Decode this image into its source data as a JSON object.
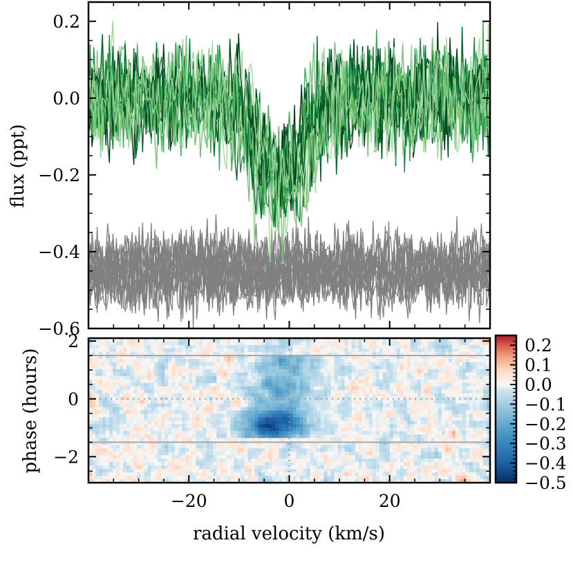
{
  "chart_data": [
    {
      "type": "line",
      "panel": "top",
      "title": "",
      "xlabel": "",
      "ylabel": "flux (ppt)",
      "xlim": [
        -40,
        40
      ],
      "ylim": [
        -0.6,
        0.25
      ],
      "yticks": [
        -0.6,
        -0.4,
        -0.2,
        0.0,
        0.2
      ],
      "ytick_labels": [
        "−0.6",
        "−0.4",
        "−0.2",
        "0.0",
        "0.2"
      ],
      "xticks": [
        -20,
        0,
        20
      ],
      "colors": {
        "in_transit": [
          "#a1d99b",
          "#74c476",
          "#41ab5d",
          "#238b45",
          "#006d2c",
          "#00441b"
        ],
        "out_of_transit": "#808080"
      },
      "series_summary": {
        "in_transit": {
          "count": 14,
          "baseline": 0.0,
          "noise_amplitude": 0.07,
          "dip_center_kms": -1.5,
          "dip_depth": -0.22,
          "dip_width_kms": 4.5,
          "dip_center_drift_kms": [
            -4,
            3
          ]
        },
        "out_of_transit": {
          "count": 14,
          "baseline": -0.45,
          "noise_amplitude": 0.05
        }
      }
    },
    {
      "type": "heatmap",
      "panel": "bottom",
      "xlabel": "radial velocity (km/s)",
      "ylabel": "phase (hours)",
      "xlim": [
        -40,
        40
      ],
      "ylim": [
        -2.9,
        2.1
      ],
      "xticks": [
        -20,
        0,
        20
      ],
      "xtick_labels": [
        "−20",
        "0",
        "20"
      ],
      "yticks": [
        -2,
        0,
        2
      ],
      "ytick_labels": [
        "−2",
        "0",
        "2"
      ],
      "transit_ingress_hours": 1.5,
      "transit_egress_hours": -1.5,
      "zero_lines": {
        "velocity": 0,
        "phase": 0
      },
      "shadow": {
        "center_kms": -1.5,
        "depth": -0.5,
        "phase_range": [
          -1.3,
          1.5
        ]
      },
      "colorbar": {
        "cmap": "RdBu_r",
        "vmin": -0.5,
        "vmax": 0.25,
        "ticks": [
          0.2,
          0.1,
          0.0,
          -0.1,
          -0.2,
          -0.3,
          -0.4,
          -0.5
        ],
        "tick_labels": [
          "0.2",
          "0.1",
          "0.0",
          "−0.1",
          "−0.2",
          "−0.3",
          "−0.4",
          "−0.5"
        ]
      }
    }
  ]
}
